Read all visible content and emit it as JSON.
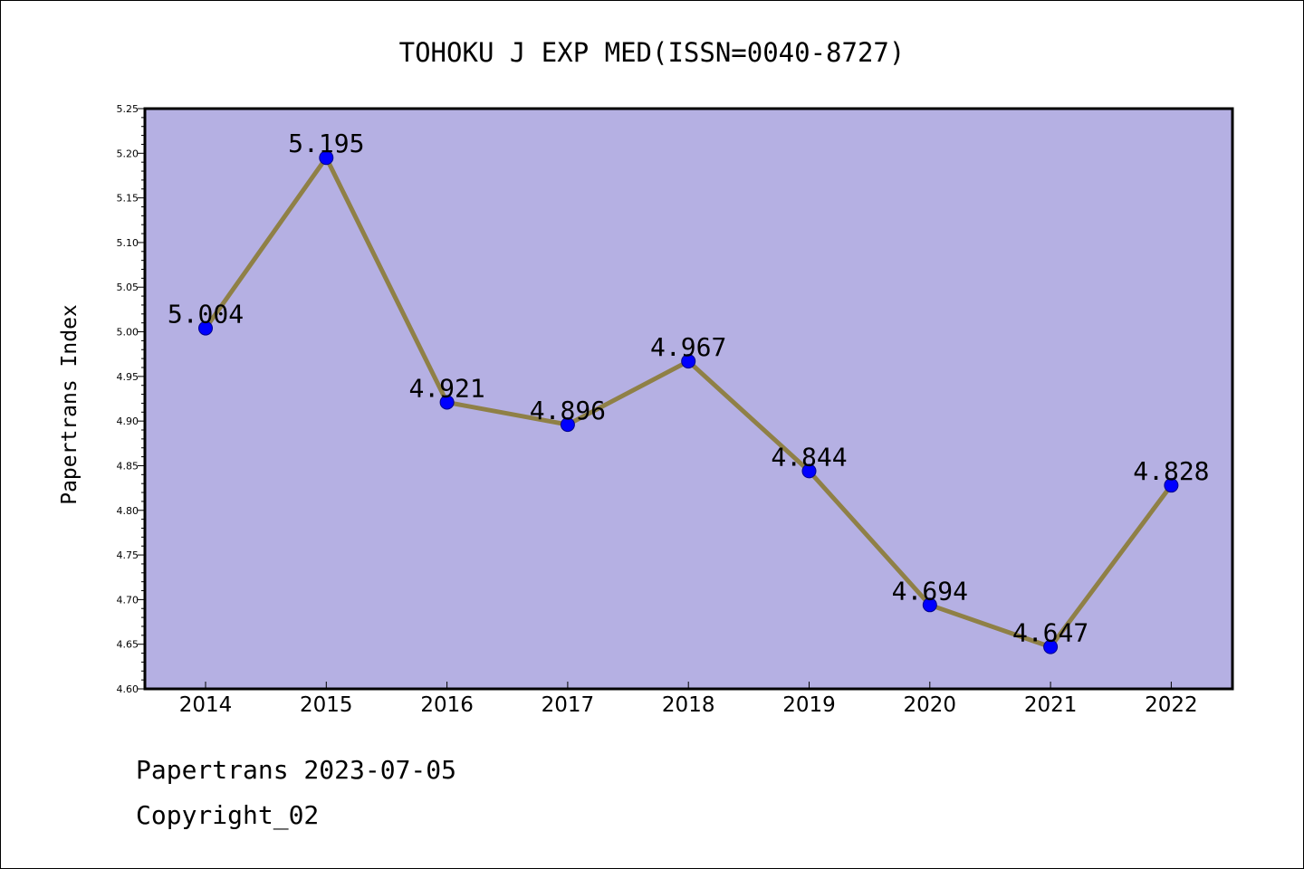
{
  "chart_data": {
    "type": "line",
    "title": "TOHOKU J EXP MED(ISSN=0040-8727)",
    "xlabel": "",
    "ylabel": "Papertrans Index",
    "categories": [
      "2014",
      "2015",
      "2016",
      "2017",
      "2018",
      "2019",
      "2020",
      "2021",
      "2022"
    ],
    "series": [
      {
        "values": [
          5.004,
          5.195,
          4.921,
          4.896,
          4.967,
          4.844,
          4.694,
          4.647,
          4.828
        ],
        "labels": [
          "5.004",
          "5.195",
          "4.921",
          "4.896",
          "4.967",
          "4.844",
          "4.694",
          "4.647",
          "4.828"
        ]
      }
    ],
    "ylim": [
      4.6,
      5.25
    ],
    "yticks": [
      "4.60",
      "4.65",
      "4.70",
      "4.75",
      "4.80",
      "4.85",
      "4.90",
      "4.95",
      "5.00",
      "5.05",
      "5.10",
      "5.15",
      "5.20",
      "5.25"
    ],
    "grid": false,
    "legend": "none",
    "colors": {
      "plot_background": "#b5b0e3",
      "line": "#8f8046",
      "marker": "#0000ff",
      "marker_edge": "#00008b"
    }
  },
  "footer": {
    "line1": "Papertrans 2023-07-05",
    "line2": "Copyright_02"
  }
}
